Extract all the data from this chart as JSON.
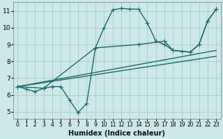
{
  "xlabel": "Humidex (Indice chaleur)",
  "xlim": [
    -0.5,
    23.5
  ],
  "ylim": [
    4.6,
    11.5
  ],
  "xticks": [
    0,
    1,
    2,
    3,
    4,
    5,
    6,
    7,
    8,
    9,
    10,
    11,
    12,
    13,
    14,
    15,
    16,
    17,
    18,
    19,
    20,
    21,
    22,
    23
  ],
  "yticks": [
    5,
    6,
    7,
    8,
    9,
    10,
    11
  ],
  "background_color": "#cce8e8",
  "grid_color": "#aacccc",
  "line_color": "#1a6b6b",
  "curve1_x": [
    0,
    1,
    2,
    3,
    4,
    5,
    6,
    7,
    8,
    9,
    10,
    11,
    12,
    13,
    14,
    15,
    16,
    17,
    18,
    19,
    20,
    21,
    22,
    23
  ],
  "curve1_y": [
    6.5,
    6.35,
    6.2,
    6.4,
    6.5,
    6.5,
    5.7,
    4.95,
    5.5,
    8.8,
    10.0,
    11.05,
    11.15,
    11.1,
    11.1,
    10.3,
    9.2,
    9.0,
    8.65,
    8.6,
    8.55,
    9.0,
    10.4,
    11.1
  ],
  "curve2_x": [
    0,
    3,
    9,
    14,
    17,
    18,
    20,
    21,
    22,
    23
  ],
  "curve2_y": [
    6.5,
    6.4,
    8.8,
    9.0,
    9.2,
    8.65,
    8.55,
    9.0,
    10.4,
    11.1
  ],
  "curve3_x": [
    0,
    23
  ],
  "curve3_y": [
    6.5,
    8.65
  ],
  "curve4_x": [
    0,
    23
  ],
  "curve4_y": [
    6.5,
    8.3
  ],
  "linewidth": 1.0,
  "marker_size": 4
}
